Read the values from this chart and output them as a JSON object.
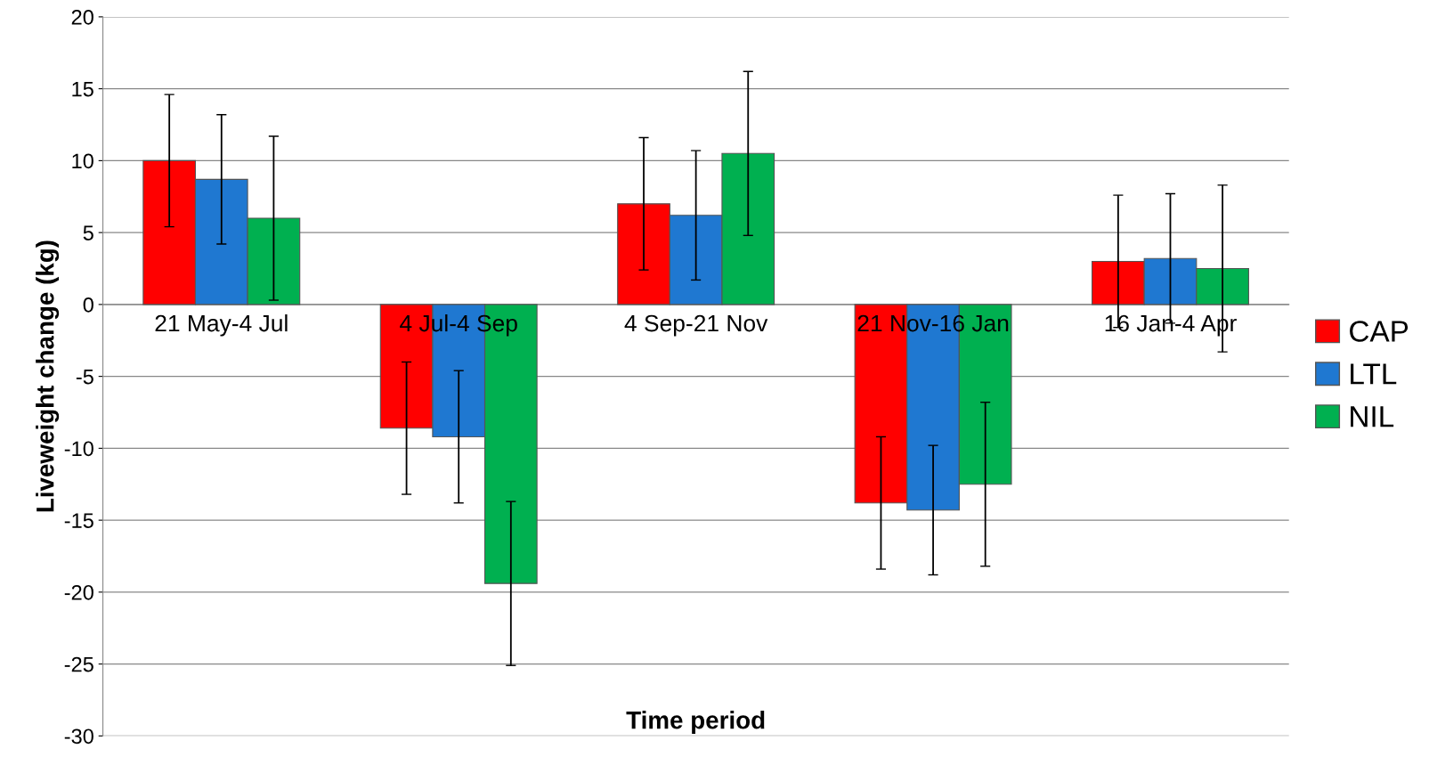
{
  "chart_data": {
    "type": "bar",
    "xlabel": "Time period",
    "ylabel": "Liveweight change (kg)",
    "categories": [
      "21 May-4 Jul",
      "4 Jul-4 Sep",
      "4 Sep-21 Nov",
      "21 Nov-16 Jan",
      "16 Jan-4 Apr"
    ],
    "series": [
      {
        "name": "CAP",
        "color": "#ff0000",
        "values": [
          10.0,
          -8.6,
          7.0,
          -13.8,
          3.0
        ],
        "errors": [
          4.6,
          4.6,
          4.6,
          4.6,
          4.6
        ]
      },
      {
        "name": "LTL",
        "color": "#1f78d1",
        "values": [
          8.7,
          -9.2,
          6.2,
          -14.3,
          3.2
        ],
        "errors": [
          4.5,
          4.6,
          4.5,
          4.5,
          4.5
        ]
      },
      {
        "name": "NIL",
        "color": "#00b050",
        "values": [
          6.0,
          -19.4,
          10.5,
          -12.5,
          2.5
        ],
        "errors": [
          5.7,
          5.7,
          5.7,
          5.7,
          5.8
        ]
      }
    ],
    "ylim": [
      -30,
      20
    ],
    "yticks": [
      -30,
      -25,
      -20,
      -15,
      -10,
      -5,
      0,
      5,
      10,
      15,
      20
    ],
    "grid": "y",
    "legend": "right"
  }
}
